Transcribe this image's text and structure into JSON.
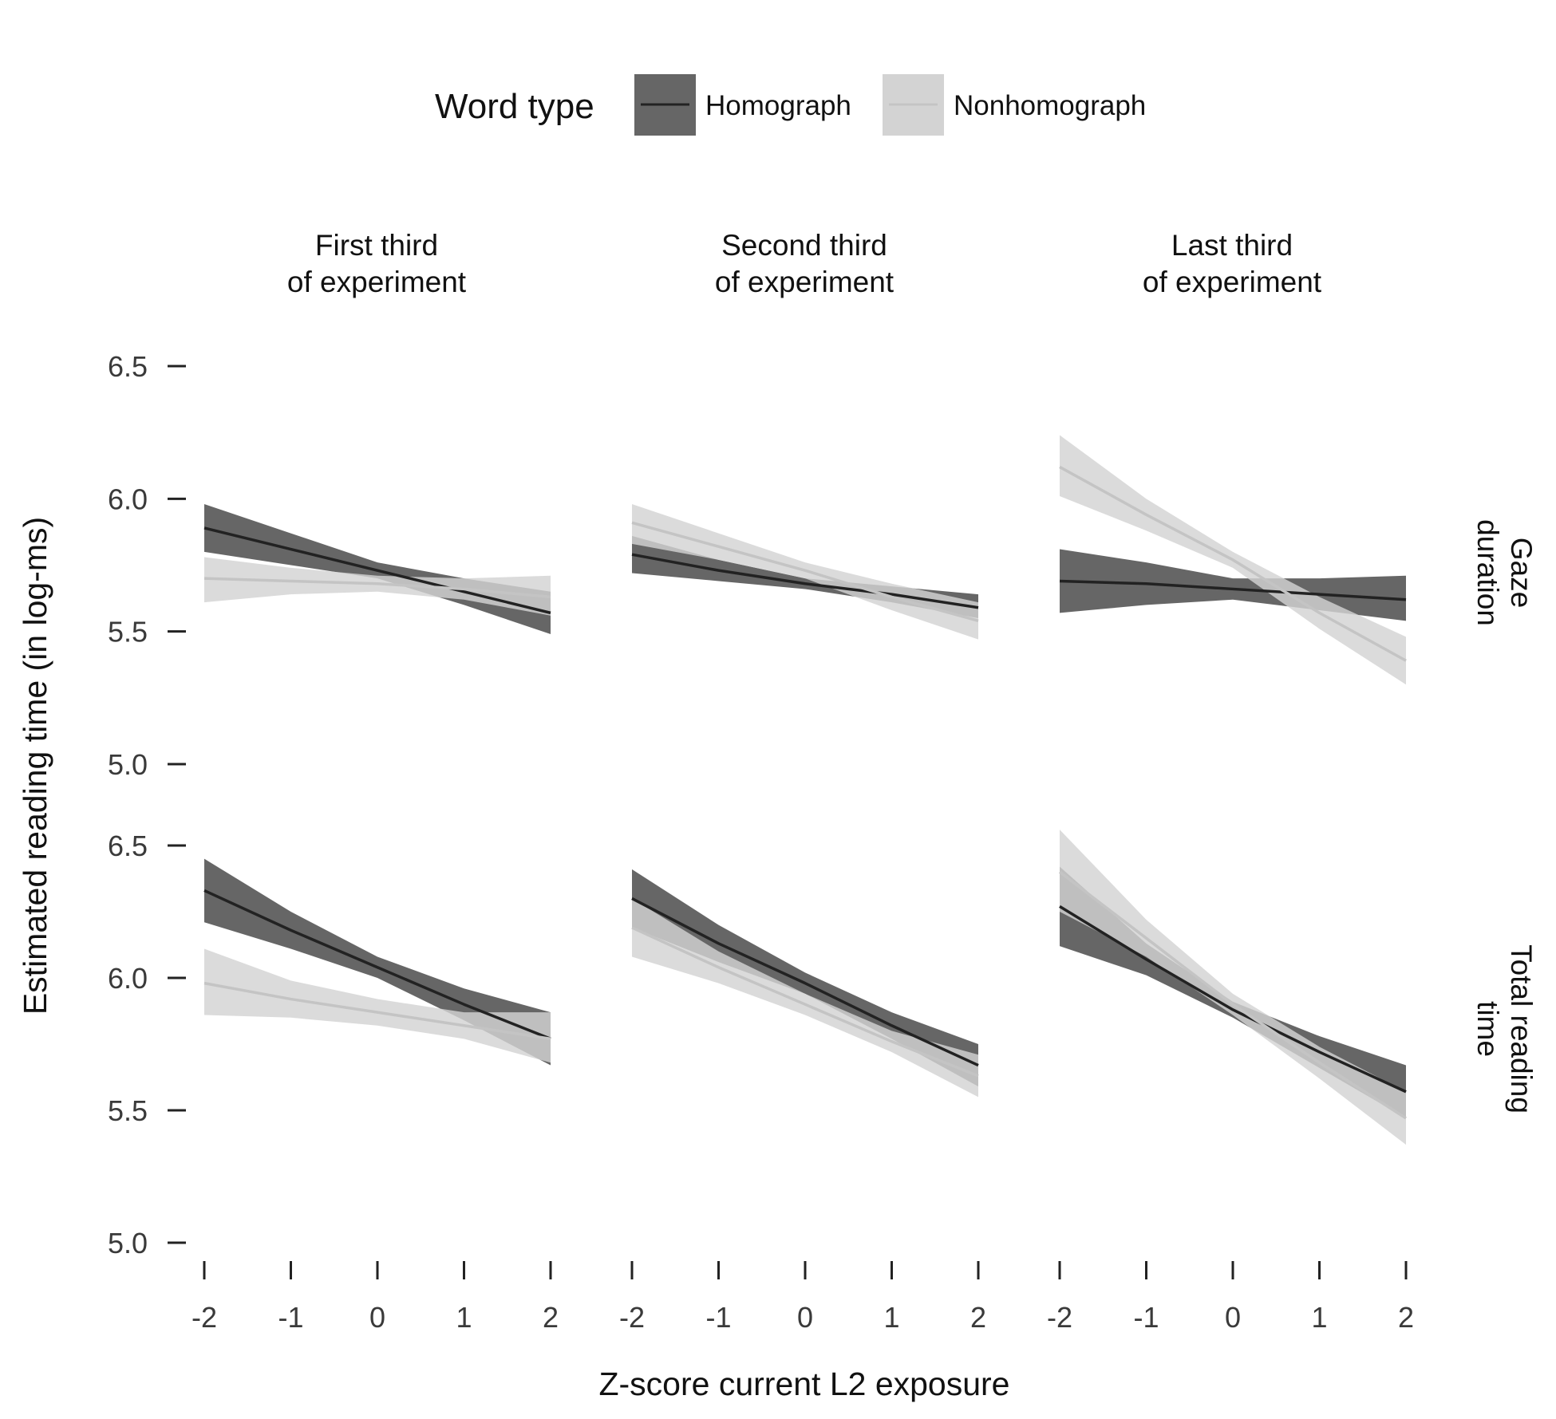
{
  "chart_data": {
    "type": "line",
    "xlabel": "Z-score current L2 exposure",
    "ylabel": "Estimated reading time (in log-ms)",
    "legend": {
      "title": "Word type",
      "placement": "top",
      "entries": [
        {
          "label": "Homograph",
          "line_color": "#222222",
          "band_color": "#666666"
        },
        {
          "label": "Nonhomograph",
          "line_color": "#c4c4c4",
          "band_color": "#d3d3d3"
        }
      ]
    },
    "column_labels": [
      {
        "line1": "First third",
        "line2": "of experiment"
      },
      {
        "line1": "Second third",
        "line2": "of experiment"
      },
      {
        "line1": "Last third",
        "line2": "of experiment"
      }
    ],
    "row_labels": [
      {
        "line1": "Gaze",
        "line2": "duration"
      },
      {
        "line1": "Total reading",
        "line2": "time"
      }
    ],
    "x_ticks": [
      -2,
      -1,
      0,
      1,
      2
    ],
    "x_tick_labels": [
      "-2",
      "-1",
      "0",
      "1",
      "2"
    ],
    "y_ticks": [
      5.0,
      5.5,
      6.0,
      6.5
    ],
    "y_tick_labels": [
      "5.0",
      "5.5",
      "6.0",
      "6.5"
    ],
    "xlim": [
      -2,
      2
    ],
    "ylim": [
      5.0,
      6.5
    ],
    "grid": false,
    "x": [
      -2,
      -1,
      0,
      1,
      2
    ],
    "panels": [
      {
        "row": 0,
        "col": 0,
        "series": [
          {
            "name": "Homograph",
            "fit": [
              5.89,
              5.81,
              5.73,
              5.65,
              5.57
            ],
            "lower": [
              5.8,
              5.75,
              5.7,
              5.6,
              5.49
            ],
            "upper": [
              5.98,
              5.87,
              5.76,
              5.7,
              5.65
            ]
          },
          {
            "name": "Nonhomograph",
            "fit": [
              5.7,
              5.69,
              5.68,
              5.66,
              5.63
            ],
            "lower": [
              5.61,
              5.64,
              5.65,
              5.62,
              5.56
            ],
            "upper": [
              5.78,
              5.74,
              5.71,
              5.7,
              5.71
            ]
          }
        ]
      },
      {
        "row": 0,
        "col": 1,
        "series": [
          {
            "name": "Homograph",
            "fit": [
              5.79,
              5.73,
              5.68,
              5.64,
              5.59
            ],
            "lower": [
              5.72,
              5.69,
              5.66,
              5.61,
              5.55
            ],
            "upper": [
              5.86,
              5.77,
              5.7,
              5.67,
              5.64
            ]
          },
          {
            "name": "Nonhomograph",
            "fit": [
              5.91,
              5.82,
              5.73,
              5.63,
              5.54
            ],
            "lower": [
              5.83,
              5.77,
              5.7,
              5.58,
              5.47
            ],
            "upper": [
              5.98,
              5.87,
              5.76,
              5.68,
              5.61
            ]
          }
        ]
      },
      {
        "row": 0,
        "col": 2,
        "series": [
          {
            "name": "Homograph",
            "fit": [
              5.69,
              5.68,
              5.66,
              5.64,
              5.62
            ],
            "lower": [
              5.57,
              5.6,
              5.62,
              5.58,
              5.54
            ],
            "upper": [
              5.81,
              5.76,
              5.7,
              5.7,
              5.71
            ]
          },
          {
            "name": "Nonhomograph",
            "fit": [
              6.12,
              5.94,
              5.77,
              5.57,
              5.39
            ],
            "lower": [
              6.01,
              5.88,
              5.74,
              5.51,
              5.3
            ],
            "upper": [
              6.24,
              6.0,
              5.8,
              5.63,
              5.48
            ]
          }
        ]
      },
      {
        "row": 1,
        "col": 0,
        "series": [
          {
            "name": "Homograph",
            "fit": [
              6.33,
              6.18,
              6.04,
              5.9,
              5.77
            ],
            "lower": [
              6.21,
              6.11,
              6.0,
              5.84,
              5.67
            ],
            "upper": [
              6.45,
              6.25,
              6.08,
              5.96,
              5.87
            ]
          },
          {
            "name": "Nonhomograph",
            "fit": [
              5.98,
              5.92,
              5.87,
              5.82,
              5.77
            ],
            "lower": [
              5.86,
              5.85,
              5.82,
              5.77,
              5.68
            ],
            "upper": [
              6.11,
              5.99,
              5.92,
              5.87,
              5.87
            ]
          }
        ]
      },
      {
        "row": 1,
        "col": 1,
        "series": [
          {
            "name": "Homograph",
            "fit": [
              6.3,
              6.13,
              5.98,
              5.82,
              5.67
            ],
            "lower": [
              6.19,
              6.06,
              5.94,
              5.77,
              5.59
            ],
            "upper": [
              6.41,
              6.2,
              6.02,
              5.87,
              5.75
            ]
          },
          {
            "name": "Nonhomograph",
            "fit": [
              6.19,
              6.04,
              5.9,
              5.76,
              5.63
            ],
            "lower": [
              6.08,
              5.98,
              5.86,
              5.72,
              5.55
            ],
            "upper": [
              6.3,
              6.1,
              5.94,
              5.8,
              5.71
            ]
          }
        ]
      },
      {
        "row": 1,
        "col": 2,
        "series": [
          {
            "name": "Homograph",
            "fit": [
              6.27,
              6.07,
              5.88,
              5.72,
              5.57
            ],
            "lower": [
              6.12,
              6.01,
              5.85,
              5.66,
              5.47
            ],
            "upper": [
              6.42,
              6.13,
              5.91,
              5.78,
              5.67
            ]
          },
          {
            "name": "Nonhomograph",
            "fit": [
              6.4,
              6.15,
              5.9,
              5.68,
              5.47
            ],
            "lower": [
              6.25,
              6.08,
              5.86,
              5.62,
              5.37
            ],
            "upper": [
              6.56,
              6.22,
              5.94,
              5.74,
              5.57
            ]
          }
        ]
      }
    ]
  }
}
